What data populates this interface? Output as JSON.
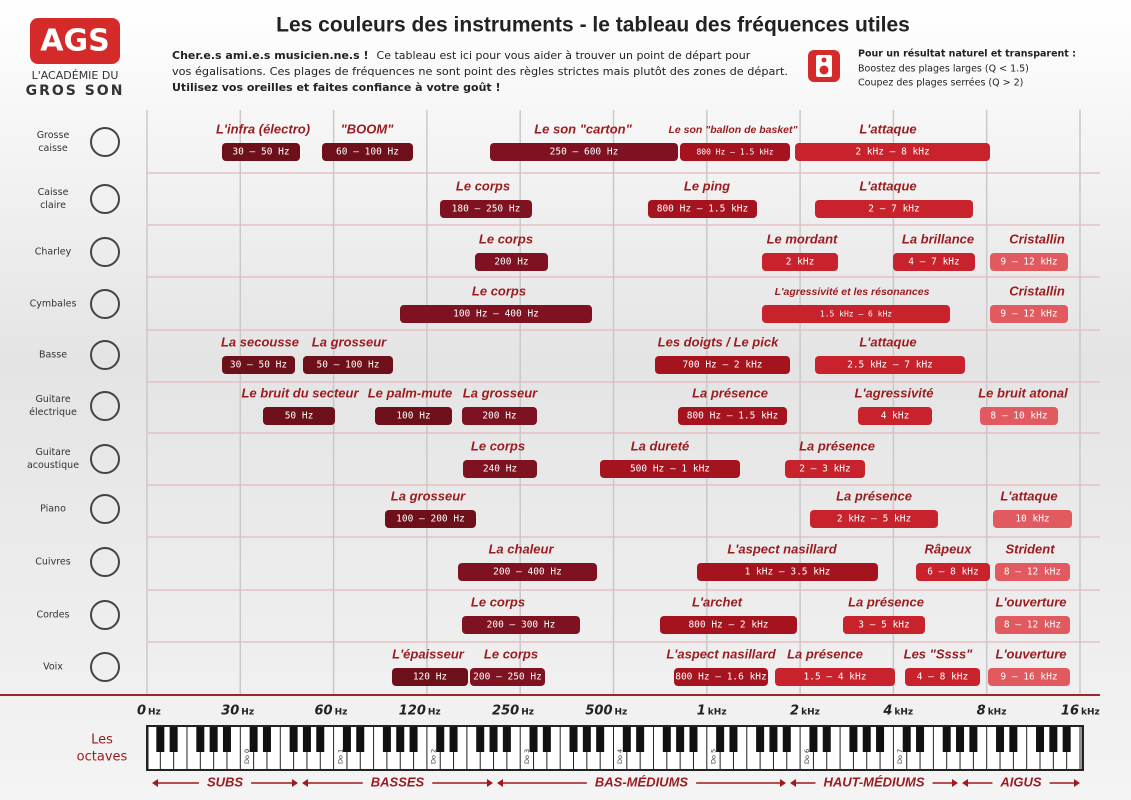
{
  "header": {
    "logo": "AGS",
    "logo_line_1": "L'ACADÉMIE DU",
    "logo_line_2": "GROS SON",
    "title": "Les couleurs des instruments - le tableau des fréquences utiles",
    "intro_bold": "Cher.e.s ami.e.s musicien.ne.s !",
    "intro_1": "Ce tableau est ici pour vous aider à trouver un point de départ pour",
    "intro_2": "vos égalisations. Ces plages de fréquences ne sont point des règles strictes mais plutôt des zones de départ.",
    "intro_3": "Utilisez vos oreilles et faites confiance à votre goût !",
    "tip_title": "Pour un résultat naturel et transparent :",
    "tip_1": "Boostez des plages larges (Q < 1.5)",
    "tip_2": "Coupez des plages serrées (Q > 2)"
  },
  "instruments": [
    {
      "name": [
        "Grosse",
        "caisse"
      ],
      "bands": [
        {
          "label": "L'infra (électro)",
          "range": "30 – 50 Hz"
        },
        {
          "label": "\"BOOM\"",
          "range": "60 – 100 Hz"
        },
        {
          "label": "Le son \"carton\"",
          "range": "250 – 600 Hz"
        },
        {
          "label": "Le son \"ballon de basket\"",
          "range": "800 Hz – 1.5 kHz"
        },
        {
          "label": "L'attaque",
          "range": "2 kHz – 8 kHz"
        }
      ]
    },
    {
      "name": [
        "Caisse",
        "claire"
      ],
      "bands": [
        {
          "label": "Le corps",
          "range": "180 – 250 Hz"
        },
        {
          "label": "Le ping",
          "range": "800 Hz – 1.5 kHz"
        },
        {
          "label": "L'attaque",
          "range": "2 – 7 kHz"
        }
      ]
    },
    {
      "name": [
        "Charley"
      ],
      "bands": [
        {
          "label": "Le corps",
          "range": "200 Hz"
        },
        {
          "label": "Le mordant",
          "range": "2 kHz"
        },
        {
          "label": "La brillance",
          "range": "4 – 7 kHz"
        },
        {
          "label": "Cristallin",
          "range": "9 – 12 kHz"
        }
      ]
    },
    {
      "name": [
        "Cymbales"
      ],
      "bands": [
        {
          "label": "Le corps",
          "range": "100 Hz – 400 Hz"
        },
        {
          "label": "L'agressivité et les résonances",
          "range": "1.5 kHz – 6 kHz"
        },
        {
          "label": "Cristallin",
          "range": "9 – 12 kHz"
        }
      ]
    },
    {
      "name": [
        "Basse"
      ],
      "bands": [
        {
          "label": "La secousse",
          "range": "30 – 50 Hz"
        },
        {
          "label": "La grosseur",
          "range": "50 – 100 Hz"
        },
        {
          "label": "Les doigts / Le pick",
          "range": "700 Hz – 2 kHz"
        },
        {
          "label": "L'attaque",
          "range": "2.5 kHz – 7 kHz"
        }
      ]
    },
    {
      "name": [
        "Guitare",
        "électrique"
      ],
      "bands": [
        {
          "label": "Le bruit du secteur",
          "range": "50 Hz"
        },
        {
          "label": "Le palm-mute",
          "range": "100 Hz"
        },
        {
          "label": "La grosseur",
          "range": "200 Hz"
        },
        {
          "label": "La présence",
          "range": "800 Hz – 1.5 kHz"
        },
        {
          "label": "L'agressivité",
          "range": "4 kHz"
        },
        {
          "label": "Le bruit atonal",
          "range": "8 – 10 kHz"
        }
      ]
    },
    {
      "name": [
        "Guitare",
        "acoustique"
      ],
      "bands": [
        {
          "label": "Le corps",
          "range": "240 Hz"
        },
        {
          "label": "La dureté",
          "range": "500 Hz – 1 kHz"
        },
        {
          "label": "La présence",
          "range": "2 – 3 kHz"
        }
      ]
    },
    {
      "name": [
        "Piano"
      ],
      "bands": [
        {
          "label": "La grosseur",
          "range": "100 – 200 Hz"
        },
        {
          "label": "La présence",
          "range": "2 kHz – 5 kHz"
        },
        {
          "label": "L'attaque",
          "range": "10 kHz"
        }
      ]
    },
    {
      "name": [
        "Cuivres"
      ],
      "bands": [
        {
          "label": "La chaleur",
          "range": "200 – 400 Hz"
        },
        {
          "label": "L'aspect nasillard",
          "range": "1 kHz – 3.5 kHz"
        },
        {
          "label": "Râpeux",
          "range": "6 – 8 kHz"
        },
        {
          "label": "Strident",
          "range": "8 – 12 kHz"
        }
      ]
    },
    {
      "name": [
        "Cordes"
      ],
      "bands": [
        {
          "label": "Le corps",
          "range": "200 – 300 Hz"
        },
        {
          "label": "L'archet",
          "range": "800 Hz – 2 kHz"
        },
        {
          "label": "La présence",
          "range": "3 – 5 kHz"
        },
        {
          "label": "L'ouverture",
          "range": "8 – 12 kHz"
        }
      ]
    },
    {
      "name": [
        "Voix"
      ],
      "bands": [
        {
          "label": "L'épaisseur",
          "range": "120 Hz"
        },
        {
          "label": "Le corps",
          "range": "200 – 250 Hz"
        },
        {
          "label": "L'aspect nasillard",
          "range": "800 Hz – 1.6 kHz"
        },
        {
          "label": "La présence",
          "range": "1.5 – 4 kHz"
        },
        {
          "label": "Les \"Ssss\"",
          "range": "4 – 8 kHz"
        },
        {
          "label": "L'ouverture",
          "range": "9 – 16 kHz"
        }
      ]
    }
  ],
  "frequency_axis": [
    {
      "value": "0",
      "unit": "Hz"
    },
    {
      "value": "30",
      "unit": "Hz"
    },
    {
      "value": "60",
      "unit": "Hz"
    },
    {
      "value": "120",
      "unit": "Hz"
    },
    {
      "value": "250",
      "unit": "Hz"
    },
    {
      "value": "500",
      "unit": "Hz"
    },
    {
      "value": "1",
      "unit": "kHz"
    },
    {
      "value": "2",
      "unit": "kHz"
    },
    {
      "value": "4",
      "unit": "kHz"
    },
    {
      "value": "8",
      "unit": "kHz"
    },
    {
      "value": "16",
      "unit": "kHz"
    }
  ],
  "octaves": {
    "label": [
      "Les",
      "octaves"
    ],
    "keys": [
      "Do 0",
      "Do 1",
      "Do 2",
      "Do 3",
      "Do 4",
      "Do 5",
      "Do 6",
      "Do 7"
    ]
  },
  "zones": [
    "SUBS",
    "BASSES",
    "BAS-MÉDIUMS",
    "HAUT-MÉDIUMS",
    "AIGUS"
  ]
}
